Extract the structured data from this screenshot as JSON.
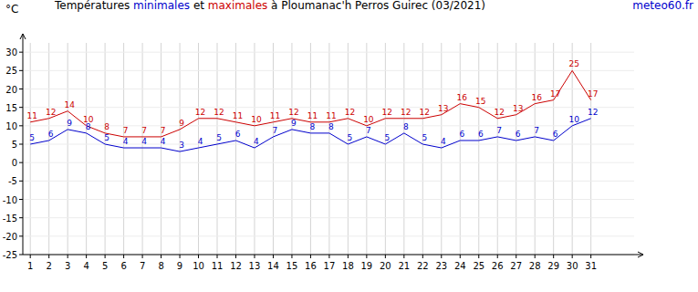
{
  "chart_data": {
    "type": "line",
    "title": "Températures minimales et maximales à Ploumanac'h Perros Guirec (03/2021)",
    "y_label": "°C",
    "annotations": [
      "meteo60.fr"
    ],
    "x": [
      1,
      2,
      3,
      4,
      5,
      6,
      7,
      8,
      9,
      10,
      11,
      12,
      13,
      14,
      15,
      16,
      17,
      18,
      19,
      20,
      21,
      22,
      23,
      24,
      25,
      26,
      27,
      28,
      29,
      30,
      31
    ],
    "xlim": [
      0.6,
      33.8
    ],
    "xticks": [
      1,
      2,
      3,
      4,
      5,
      6,
      7,
      8,
      9,
      10,
      11,
      12,
      13,
      14,
      15,
      16,
      17,
      18,
      19,
      20,
      21,
      22,
      23,
      24,
      25,
      26,
      27,
      28,
      29,
      30,
      31
    ],
    "ylim": [
      -25,
      35
    ],
    "yticks": [
      -25,
      -20,
      -15,
      -10,
      -5,
      0,
      5,
      10,
      15,
      20,
      25,
      30
    ],
    "grid": true,
    "data_labels": true,
    "series": [
      {
        "name": "minimales",
        "color": "#0000cc",
        "values": [
          5,
          6,
          9,
          8,
          5,
          4,
          4,
          4,
          3,
          4,
          5,
          6,
          4,
          7,
          9,
          8,
          8,
          5,
          7,
          5,
          8,
          5,
          4,
          6,
          6,
          7,
          6,
          7,
          6,
          10,
          12
        ]
      },
      {
        "name": "maximales",
        "color": "#cc0000",
        "values": [
          11,
          12,
          14,
          10,
          8,
          7,
          7,
          7,
          9,
          12,
          12,
          11,
          10,
          11,
          12,
          11,
          11,
          12,
          10,
          12,
          12,
          12,
          13,
          16,
          15,
          12,
          13,
          16,
          17,
          25,
          17
        ]
      }
    ]
  }
}
